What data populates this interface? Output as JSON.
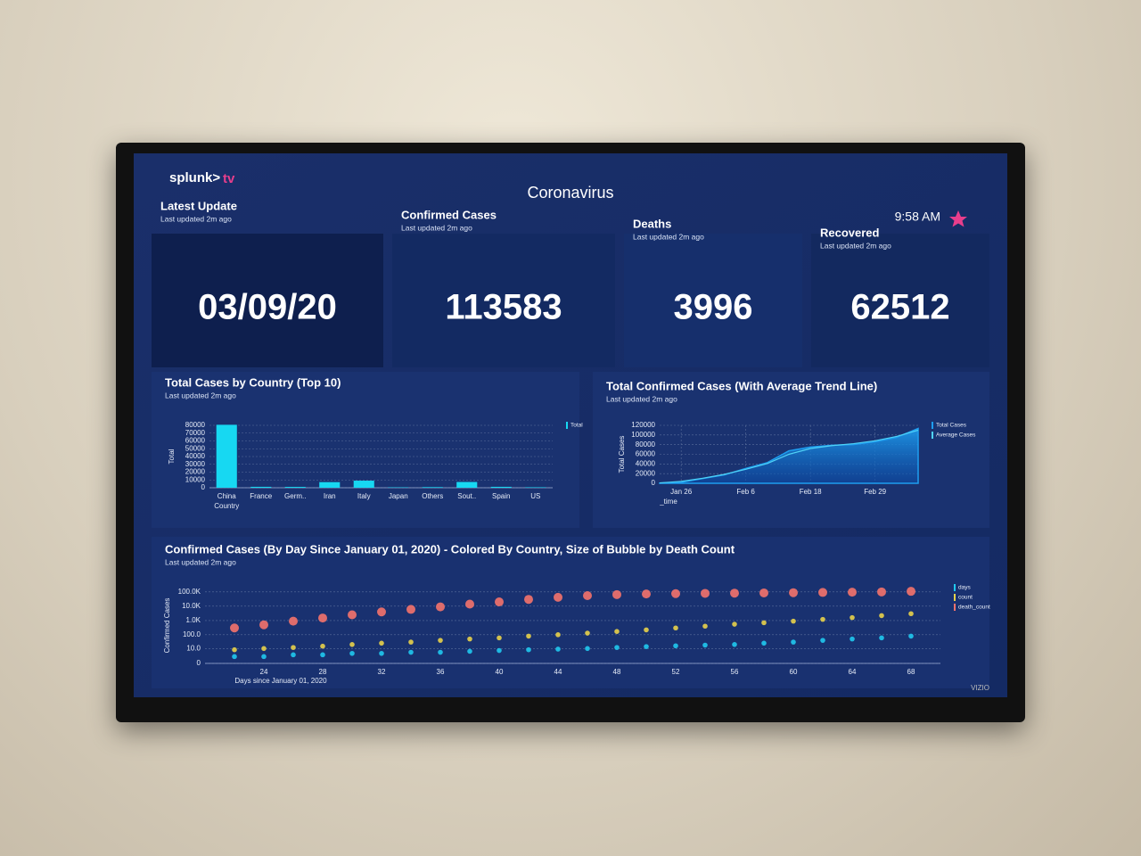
{
  "header": {
    "logo": "splunk>",
    "logo_suffix": "tv",
    "title": "Coronavirus",
    "time": "9:58 AM",
    "brand": "VIZIO"
  },
  "panels": [
    {
      "title": "Latest Update",
      "subtitle": "Last updated 2m ago",
      "value": "03/09/20"
    },
    {
      "title": "Confirmed Cases",
      "subtitle": "Last updated 2m ago",
      "value": 113583
    },
    {
      "title": "Deaths",
      "subtitle": "Last updated 2m ago",
      "value": 3996
    },
    {
      "title": "Recovered",
      "subtitle": "Last updated 2m ago",
      "value": 62512
    }
  ],
  "chart_data": [
    {
      "type": "bar",
      "title": "Total Cases by Country (Top 10)",
      "subtitle": "Last updated 2m ago",
      "x_label": "Country",
      "y_label": "Total",
      "categories": [
        "China",
        "France",
        "Germ..",
        "Iran",
        "Italy",
        "Japan",
        "Others",
        "Sout..",
        "Spain",
        "US"
      ],
      "series": [
        {
          "name": "Total",
          "color": "#17d8f2",
          "values": [
            80700,
            1200,
            1100,
            7200,
            9100,
            500,
            800,
            7400,
            1200,
            600
          ]
        }
      ],
      "ylim": [
        0,
        80000
      ],
      "yticks": [
        0,
        10000,
        20000,
        30000,
        40000,
        50000,
        60000,
        70000,
        80000
      ],
      "grid": true,
      "legend": "right"
    },
    {
      "type": "area",
      "title": "Total Confirmed Cases (With Average Trend Line)",
      "subtitle": "Last updated 2m ago",
      "x_label": "_time",
      "y_label": "Total Cases",
      "categories": [
        null,
        "Jan 26",
        null,
        null,
        "Feb 6",
        null,
        null,
        "Feb 18",
        null,
        null,
        "Feb 29",
        null,
        null
      ],
      "series": [
        {
          "name": "Total Cases",
          "color": "#1e9ef0",
          "values": [
            555,
            2100,
            9800,
            17400,
            30800,
            42800,
            67100,
            75100,
            78600,
            80400,
            86000,
            95100,
            113583
          ]
        },
        {
          "name": "Average Cases",
          "color": "#4fd2f7",
          "values": [
            800,
            4000,
            10500,
            18500,
            29000,
            41000,
            60000,
            72000,
            78000,
            82000,
            88000,
            97000,
            110000
          ]
        }
      ],
      "ylim": [
        0,
        120000
      ],
      "yticks": [
        0,
        20000,
        40000,
        60000,
        80000,
        100000,
        120000
      ],
      "grid": true,
      "legend": "right"
    },
    {
      "type": "scatter",
      "title": "Confirmed Cases (By Day Since January 01, 2020) - Colored By Country, Size of Bubble by Death Count",
      "subtitle": "Last updated 2m ago",
      "x_label": "Days since January 01, 2020",
      "y_label": "Confirmed Cases",
      "log_scale": true,
      "x": [
        22,
        24,
        26,
        28,
        30,
        32,
        34,
        36,
        38,
        40,
        42,
        44,
        46,
        48,
        50,
        52,
        54,
        56,
        58,
        60,
        62,
        64,
        66,
        68
      ],
      "series": [
        {
          "name": "days",
          "color": "#20c9ee",
          "values": [
            2,
            2,
            3,
            3,
            4,
            4,
            5,
            5,
            6,
            7,
            8,
            9,
            10,
            12,
            14,
            16,
            18,
            20,
            25,
            30,
            40,
            50,
            60,
            80
          ]
        },
        {
          "name": "count",
          "color": "#e8d24a",
          "values": [
            8,
            10,
            12,
            15,
            20,
            25,
            30,
            40,
            50,
            60,
            80,
            100,
            130,
            170,
            220,
            300,
            400,
            550,
            700,
            900,
            1200,
            1600,
            2200,
            3000
          ]
        },
        {
          "name": "death_count",
          "color": "#f4736c",
          "values": [
            300,
            500,
            900,
            1500,
            2500,
            4000,
            6000,
            9000,
            14000,
            20000,
            30000,
            42000,
            55000,
            65000,
            72000,
            76000,
            79000,
            82000,
            85000,
            88000,
            92000,
            96000,
            100000,
            110000
          ]
        }
      ],
      "xlim": [
        20,
        70
      ],
      "xticks": [
        24,
        28,
        32,
        36,
        40,
        44,
        48,
        52,
        56,
        60,
        64,
        68
      ],
      "ylim": [
        0,
        200000
      ],
      "yticks": [
        0,
        {
          "value": 10,
          "label": "10.0"
        },
        {
          "value": 100,
          "label": "100.0"
        },
        {
          "value": 1000,
          "label": "1.0K"
        },
        {
          "value": 10000,
          "label": "10.0K"
        },
        {
          "value": 100000,
          "label": "100.0K"
        }
      ],
      "grid": true,
      "legend": "right"
    }
  ]
}
